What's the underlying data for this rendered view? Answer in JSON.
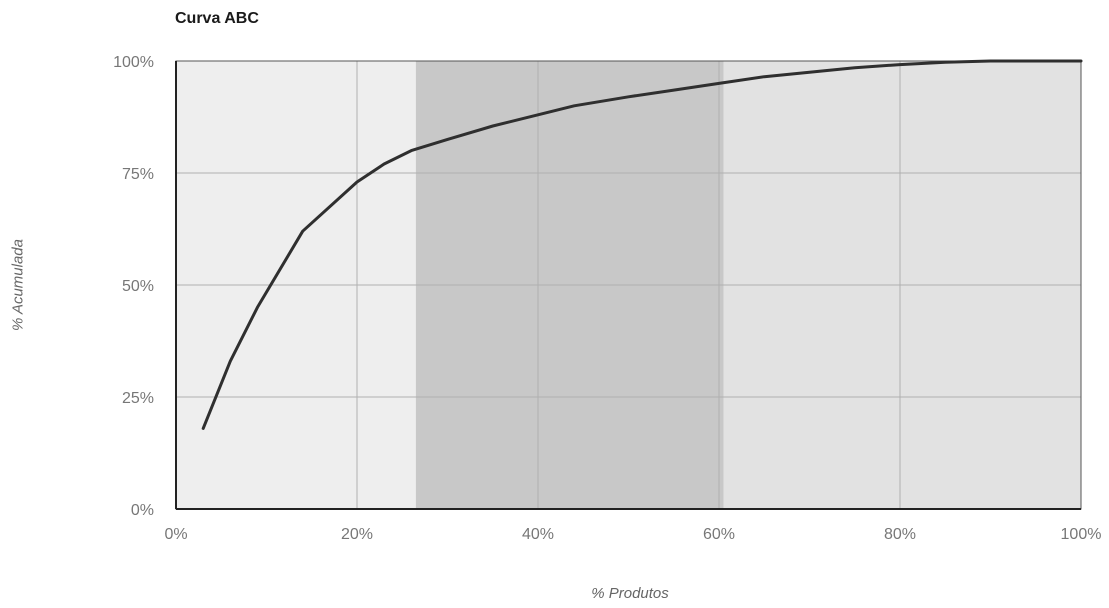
{
  "chart_data": {
    "type": "line",
    "title": "Curva ABC",
    "xlabel": "% Produtos",
    "ylabel": "% Acumulada",
    "xlim": [
      0,
      100
    ],
    "ylim": [
      0,
      100
    ],
    "xticks": [
      0,
      20,
      40,
      60,
      80,
      100
    ],
    "yticks": [
      0,
      25,
      50,
      75,
      100
    ],
    "xtick_labels": [
      "0%",
      "20%",
      "40%",
      "60%",
      "80%",
      "100%"
    ],
    "ytick_labels": [
      "0%",
      "25%",
      "50%",
      "75%",
      "100%"
    ],
    "grid": true,
    "bands": [
      {
        "from": 0,
        "to": 26.5,
        "color": "#eeeeee"
      },
      {
        "from": 26.5,
        "to": 60.5,
        "color": "#c8c8c8"
      },
      {
        "from": 60.5,
        "to": 100,
        "color": "#e2e2e2"
      }
    ],
    "series": [
      {
        "color": "#2f2f2f",
        "x": [
          3,
          6,
          9,
          14,
          20,
          23,
          26,
          30,
          35,
          40,
          44,
          50,
          55,
          60,
          65,
          70,
          75,
          80,
          85,
          90,
          95,
          100
        ],
        "y": [
          18,
          33,
          45,
          62,
          73,
          77,
          80,
          82.5,
          85.5,
          88,
          90,
          92,
          93.5,
          95,
          96.5,
          97.5,
          98.5,
          99.2,
          99.7,
          100,
          100,
          100
        ]
      }
    ]
  }
}
